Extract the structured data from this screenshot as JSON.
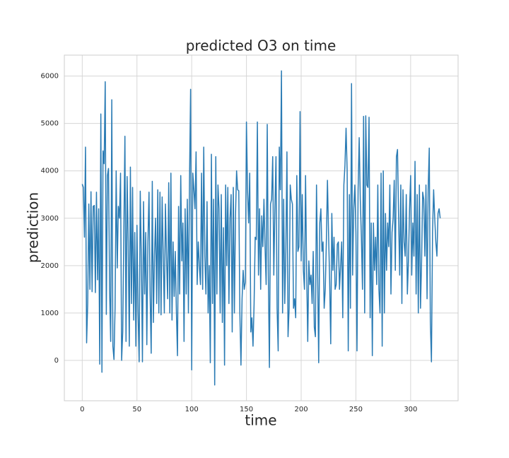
{
  "chart_data": {
    "type": "line",
    "title": "predicted O3 on time",
    "x_label": "time",
    "y_label": "prediction",
    "color": "#2a7bb4",
    "grid": true,
    "xlim": [
      -16.35,
      343.35
    ],
    "xticks": [
      0,
      50,
      100,
      150,
      200,
      250,
      300
    ],
    "ylim": [
      -851,
      6441
    ],
    "yticks": [
      0,
      1000,
      2000,
      3000,
      4000,
      5000,
      6000
    ],
    "x": [
      0,
      1,
      2,
      3,
      4,
      5,
      6,
      7,
      8,
      9,
      10,
      11,
      12,
      13,
      14,
      15,
      16,
      17,
      18,
      19,
      20,
      21,
      22,
      23,
      24,
      25,
      26,
      27,
      28,
      29,
      30,
      31,
      32,
      33,
      34,
      35,
      36,
      37,
      38,
      39,
      40,
      41,
      42,
      43,
      44,
      45,
      46,
      47,
      48,
      49,
      50,
      51,
      52,
      53,
      54,
      55,
      56,
      57,
      58,
      59,
      60,
      61,
      62,
      63,
      64,
      65,
      66,
      67,
      68,
      69,
      70,
      71,
      72,
      73,
      74,
      75,
      76,
      77,
      78,
      79,
      80,
      81,
      82,
      83,
      84,
      85,
      86,
      87,
      88,
      89,
      90,
      91,
      92,
      93,
      94,
      95,
      96,
      97,
      98,
      99,
      100,
      101,
      102,
      103,
      104,
      105,
      106,
      107,
      108,
      109,
      110,
      111,
      112,
      113,
      114,
      115,
      116,
      117,
      118,
      119,
      120,
      121,
      122,
      123,
      124,
      125,
      126,
      127,
      128,
      129,
      130,
      131,
      132,
      133,
      134,
      135,
      136,
      137,
      138,
      139,
      140,
      141,
      142,
      143,
      144,
      145,
      146,
      147,
      148,
      149,
      150,
      151,
      152,
      153,
      154,
      155,
      156,
      157,
      158,
      159,
      160,
      161,
      162,
      163,
      164,
      165,
      166,
      167,
      168,
      169,
      170,
      171,
      172,
      173,
      174,
      175,
      176,
      177,
      178,
      179,
      180,
      181,
      182,
      183,
      184,
      185,
      186,
      187,
      188,
      189,
      190,
      191,
      192,
      193,
      194,
      195,
      196,
      197,
      198,
      199,
      200,
      201,
      202,
      203,
      204,
      205,
      206,
      207,
      208,
      209,
      210,
      211,
      212,
      213,
      214,
      215,
      216,
      217,
      218,
      219,
      220,
      221,
      222,
      223,
      224,
      225,
      226,
      227,
      228,
      229,
      230,
      231,
      232,
      233,
      234,
      235,
      236,
      237,
      238,
      239,
      240,
      241,
      242,
      243,
      244,
      245,
      246,
      247,
      248,
      249,
      250,
      251,
      252,
      253,
      254,
      255,
      256,
      257,
      258,
      259,
      260,
      261,
      262,
      263,
      264,
      265,
      266,
      267,
      268,
      269,
      270,
      271,
      272,
      273,
      274,
      275,
      276,
      277,
      278,
      279,
      280,
      281,
      282,
      283,
      284,
      285,
      286,
      287,
      288,
      289,
      290,
      291,
      292,
      293,
      294,
      295,
      296,
      297,
      298,
      299,
      300,
      301,
      302,
      303,
      304,
      305,
      306,
      307,
      308,
      309,
      310,
      311,
      312,
      313,
      314,
      315,
      316,
      317,
      318,
      319,
      320,
      321,
      322,
      323,
      324,
      325,
      326,
      327
    ],
    "values": [
      3720,
      3650,
      2600,
      4500,
      370,
      1200,
      3300,
      1500,
      3560,
      1450,
      3250,
      3270,
      1430,
      3550,
      1700,
      3200,
      -80,
      5200,
      -250,
      4420,
      4150,
      5880,
      970,
      3900,
      4050,
      1500,
      400,
      5500,
      300,
      20,
      1100,
      4000,
      1950,
      3250,
      3000,
      3950,
      0,
      600,
      2700,
      4730,
      400,
      3880,
      2500,
      300,
      4080,
      1200,
      3650,
      850,
      2700,
      300,
      2850,
      1000,
      -30,
      3570,
      2150,
      -30,
      3350,
      1400,
      2700,
      330,
      2500,
      3550,
      1400,
      150,
      3780,
      800,
      2200,
      3000,
      1200,
      3600,
      1000,
      3550,
      960,
      3450,
      2200,
      1000,
      3300,
      2200,
      1300,
      3750,
      1000,
      3950,
      850,
      2500,
      1350,
      2300,
      1050,
      100,
      3250,
      1400,
      3900,
      2100,
      2900,
      400,
      3200,
      1400,
      3400,
      1000,
      3800,
      5720,
      -200,
      3950,
      3600,
      3200,
      4400,
      1600,
      2500,
      2000,
      1600,
      3950,
      1500,
      4500,
      2200,
      1400,
      3350,
      1000,
      2000,
      -50,
      4350,
      1200,
      3400,
      -520,
      4300,
      1400,
      3700,
      3200,
      1000,
      3500,
      800,
      2800,
      -100,
      3700,
      2000,
      3650,
      1200,
      3000,
      3500,
      600,
      3650,
      1000,
      3050,
      4000,
      3600,
      3580,
      1000,
      -100,
      1300,
      1900,
      1500,
      1650,
      5030,
      3600,
      2900,
      3950,
      600,
      900,
      300,
      1200,
      2600,
      2550,
      5030,
      1800,
      3200,
      1500,
      3050,
      2400,
      3400,
      2400,
      1600,
      4980,
      1800,
      -150,
      3300,
      3400,
      4300,
      1800,
      3200,
      4300,
      1100,
      200,
      4500,
      3600,
      6110,
      1000,
      3400,
      1200,
      2300,
      4400,
      500,
      1100,
      3700,
      3400,
      3300,
      1100,
      1300,
      900,
      3900,
      2300,
      2400,
      5250,
      2100,
      3500,
      1900,
      1500,
      3900,
      1900,
      400,
      2100,
      1600,
      1800,
      1200,
      2300,
      700,
      500,
      3700,
      1900,
      -50,
      2900,
      3200,
      2300,
      2500,
      1100,
      1500,
      2500,
      3800,
      2700,
      1700,
      350,
      3100,
      1900,
      2600,
      1500,
      1600,
      2450,
      2500,
      1500,
      2000,
      2500,
      900,
      3700,
      4120,
      4900,
      4000,
      200,
      3500,
      1100,
      5840,
      1800,
      3200,
      3700,
      2700,
      200,
      3600,
      4700,
      3400,
      2600,
      1500,
      5150,
      1000,
      5160,
      3700,
      3650,
      5130,
      900,
      2900,
      100,
      2900,
      1900,
      2600,
      1600,
      3700,
      1500,
      1000,
      3950,
      300,
      4000,
      1000,
      3100,
      1900,
      2900,
      2400,
      3700,
      1400,
      2700,
      3000,
      3800,
      1900,
      4300,
      4450,
      3000,
      1800,
      3700,
      1200,
      3600,
      2500,
      2200,
      3500,
      1400,
      2100,
      3200,
      3900,
      1800,
      2900,
      2200,
      4200,
      1400,
      3500,
      1000,
      3700,
      1100,
      2100,
      3550,
      3400,
      2200,
      3700,
      1300,
      3600,
      4480,
      800,
      -30,
      2700,
      3600,
      3000,
      2500,
      2200,
      3100,
      3200,
      3000
    ]
  }
}
